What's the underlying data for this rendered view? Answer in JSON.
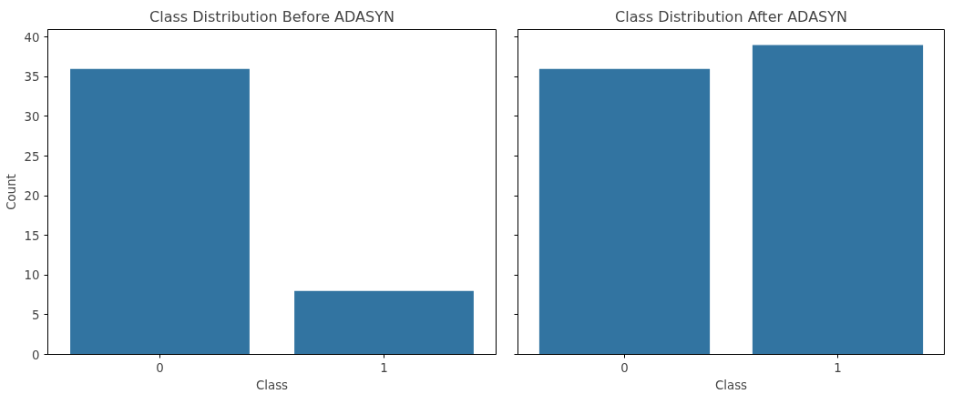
{
  "chart_data": [
    {
      "type": "bar",
      "title": "Class Distribution Before ADASYN",
      "xlabel": "Class",
      "ylabel": "Count",
      "categories": [
        "0",
        "1"
      ],
      "values": [
        36,
        8
      ],
      "color": "#3274a1",
      "ylim": [
        0,
        40.95
      ],
      "yticks": [
        0,
        5,
        10,
        15,
        20,
        25,
        30,
        35,
        40
      ],
      "grid": false
    },
    {
      "type": "bar",
      "title": "Class Distribution After ADASYN",
      "xlabel": "Class",
      "categories": [
        "0",
        "1"
      ],
      "values": [
        36,
        39
      ],
      "color": "#3274a1",
      "ylim": [
        0,
        40.95
      ],
      "yticks": [
        0,
        5,
        10,
        15,
        20,
        25,
        30,
        35,
        40
      ],
      "grid": false,
      "tick_labels": "x"
    }
  ]
}
